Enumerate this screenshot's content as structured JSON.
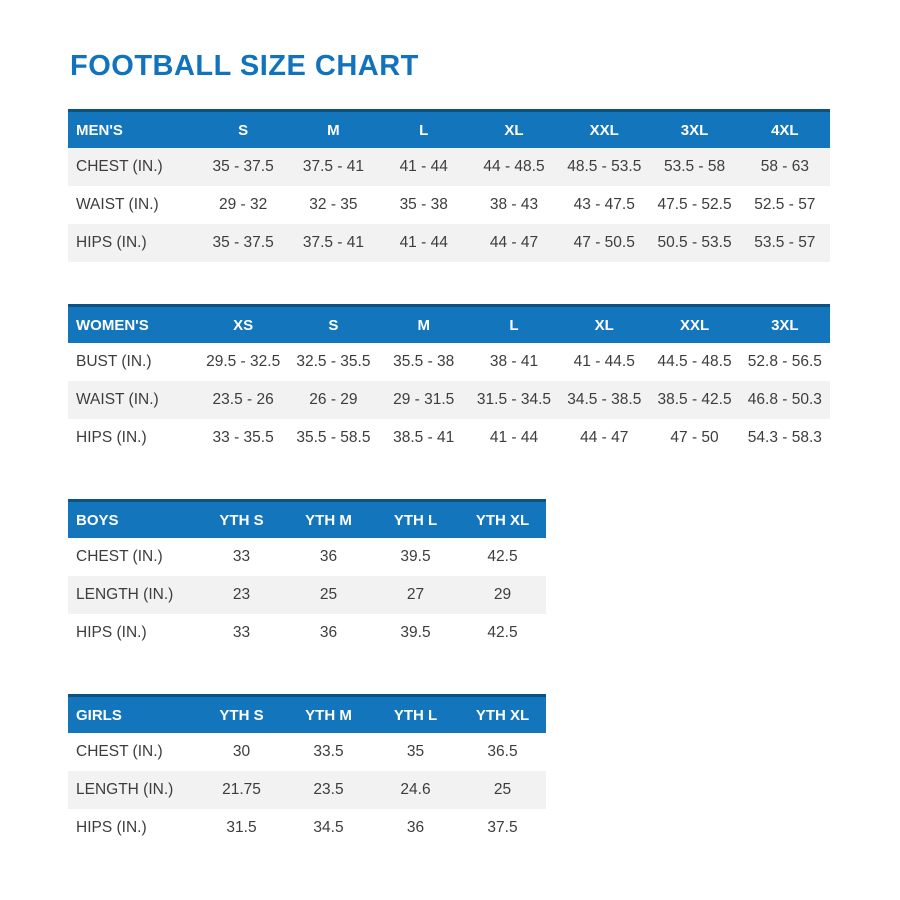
{
  "page": {
    "title": "FOOTBALL SIZE CHART"
  },
  "colors": {
    "title_blue": "#1173BD",
    "header_blue": "#1375BC",
    "header_top_border": "#0d527f",
    "stripe_gray": "#F2F2F2",
    "header_text": "#FFFFFF",
    "body_text": "#3D3D3D"
  },
  "tables": [
    {
      "group": "mens",
      "header": [
        "MEN'S",
        "S",
        "M",
        "L",
        "XL",
        "XXL",
        "3XL",
        "4XL"
      ],
      "rows": [
        {
          "label": "CHEST (IN.)",
          "values": [
            "35 - 37.5",
            "37.5 - 41",
            "41 - 44",
            "44 - 48.5",
            "48.5 - 53.5",
            "53.5 - 58",
            "58 - 63"
          ]
        },
        {
          "label": "WAIST (IN.)",
          "values": [
            "29 - 32",
            "32 - 35",
            "35 - 38",
            "38 - 43",
            "43 - 47.5",
            "47.5 - 52.5",
            "52.5 - 57"
          ]
        },
        {
          "label": "HIPS (IN.)",
          "values": [
            "35 - 37.5",
            "37.5 - 41",
            "41 - 44",
            "44 - 47",
            "47 - 50.5",
            "50.5 - 53.5",
            "53.5 - 57"
          ]
        }
      ]
    },
    {
      "group": "womens",
      "header": [
        "WOMEN'S",
        "XS",
        "S",
        "M",
        "L",
        "XL",
        "XXL",
        "3XL"
      ],
      "rows": [
        {
          "label": "BUST (IN.)",
          "values": [
            "29.5 - 32.5",
            "32.5 - 35.5",
            "35.5 - 38",
            "38 - 41",
            "41 - 44.5",
            "44.5 - 48.5",
            "52.8 - 56.5"
          ]
        },
        {
          "label": "WAIST (IN.)",
          "values": [
            "23.5 - 26",
            "26 - 29",
            "29 - 31.5",
            "31.5 - 34.5",
            "34.5 - 38.5",
            "38.5 - 42.5",
            "46.8 - 50.3"
          ]
        },
        {
          "label": "HIPS (IN.)",
          "values": [
            "33 - 35.5",
            "35.5 - 58.5",
            "38.5 - 41",
            "41 - 44",
            "44 - 47",
            "47 - 50",
            "54.3 - 58.3"
          ]
        }
      ]
    },
    {
      "group": "boys",
      "header": [
        "BOYS",
        "YTH S",
        "YTH M",
        "YTH L",
        "YTH XL"
      ],
      "rows": [
        {
          "label": "CHEST (IN.)",
          "values": [
            "33",
            "36",
            "39.5",
            "42.5"
          ]
        },
        {
          "label": "LENGTH (IN.)",
          "values": [
            "23",
            "25",
            "27",
            "29"
          ]
        },
        {
          "label": "HIPS (IN.)",
          "values": [
            "33",
            "36",
            "39.5",
            "42.5"
          ]
        }
      ]
    },
    {
      "group": "girls",
      "header": [
        "GIRLS",
        "YTH S",
        "YTH M",
        "YTH L",
        "YTH XL"
      ],
      "rows": [
        {
          "label": "CHEST (IN.)",
          "values": [
            "30",
            "33.5",
            "35",
            "36.5"
          ]
        },
        {
          "label": "LENGTH (IN.)",
          "values": [
            "21.75",
            "23.5",
            "24.6",
            "25"
          ]
        },
        {
          "label": "HIPS (IN.)",
          "values": [
            "31.5",
            "34.5",
            "36",
            "37.5"
          ]
        }
      ]
    }
  ]
}
